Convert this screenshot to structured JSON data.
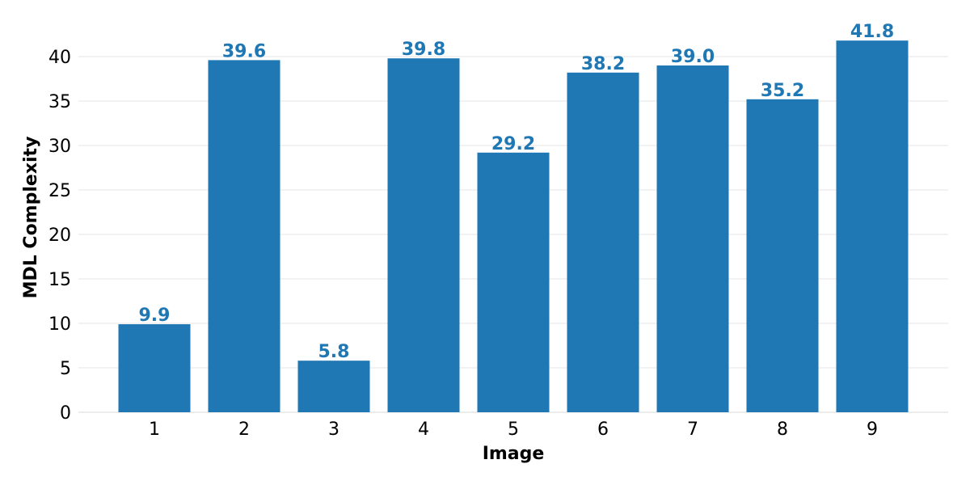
{
  "chart_data": {
    "type": "bar",
    "title": "",
    "xlabel": "Image",
    "ylabel": "MDL Complexity",
    "categories": [
      "1",
      "2",
      "3",
      "4",
      "5",
      "6",
      "7",
      "8",
      "9"
    ],
    "values": [
      9.9,
      39.6,
      5.8,
      39.8,
      29.2,
      38.2,
      39.0,
      35.2,
      41.8
    ],
    "data_labels": [
      "9.9",
      "39.6",
      "5.8",
      "39.8",
      "29.2",
      "38.2",
      "39.0",
      "35.2",
      "41.8"
    ],
    "ylim": [
      0,
      44
    ],
    "yticks": [
      0,
      5,
      10,
      15,
      20,
      25,
      30,
      35,
      40
    ],
    "grid": "y-only",
    "legend": "none",
    "bar_color": "#1f77b4",
    "label_color": "#1f77b4"
  }
}
